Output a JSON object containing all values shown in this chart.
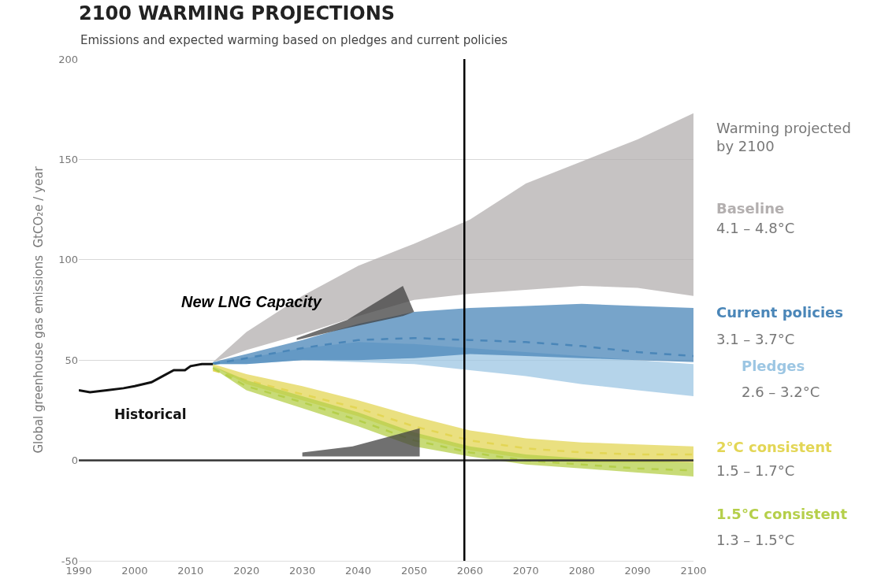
{
  "chart_data": {
    "type": "line",
    "title": "2100 WARMING PROJECTIONS",
    "subtitle": "Emissions and expected warming based on pledges and current policies",
    "ylabel": "Global greenhouse gas emissions  GtCO₂e / year",
    "x": [
      2014,
      2020,
      2030,
      2040,
      2050,
      2060,
      2070,
      2080,
      2090,
      2100
    ],
    "series": [
      {
        "name": "Baseline",
        "color": "#b3afaf",
        "values": [
          null,
          null,
          null,
          null,
          null,
          null,
          null,
          null,
          null,
          null
        ],
        "lower": [
          49,
          55,
          63,
          72,
          80,
          83,
          85,
          87,
          86,
          82
        ],
        "upper": [
          49,
          64,
          82,
          97,
          108,
          120,
          138,
          149,
          160,
          173
        ]
      },
      {
        "name": "Pledges",
        "color": "#9cc6e3",
        "values": [
          null,
          null,
          null,
          null,
          null,
          null,
          null,
          null,
          null,
          null
        ],
        "lower": [
          48,
          48,
          50,
          49,
          48,
          45,
          42,
          38,
          35,
          32
        ],
        "upper": [
          49,
          51,
          56,
          59,
          58,
          56,
          54,
          52,
          50,
          48
        ]
      },
      {
        "name": "Current policies",
        "line_style": "dashed",
        "color": "#4a86b8",
        "values": [
          48,
          51,
          56,
          60,
          61,
          60,
          59,
          57,
          54,
          52
        ],
        "lower": [
          48,
          48,
          50,
          50,
          51,
          53,
          52,
          51,
          50,
          49
        ],
        "upper": [
          49,
          53,
          60,
          68,
          74,
          76,
          77,
          78,
          77,
          76
        ]
      },
      {
        "name": "2°C consistent",
        "line_style": "dashed",
        "color": "#e3d655",
        "values": [
          45,
          40,
          33,
          26,
          17,
          10,
          6,
          4,
          3,
          3
        ],
        "lower": [
          47,
          38,
          30,
          22,
          12,
          5,
          1,
          -1,
          -1,
          -1
        ],
        "upper": [
          48,
          43,
          37,
          30,
          22,
          15,
          11,
          9,
          8,
          7
        ]
      },
      {
        "name": "1.5°C consistent",
        "line_style": "dashed",
        "color": "#b5cf4a",
        "values": [
          46,
          37,
          29,
          20,
          10,
          4,
          0,
          -2,
          -4,
          -5
        ],
        "lower": [
          46,
          35,
          26,
          17,
          7,
          2,
          -2,
          -4,
          -6,
          -8
        ],
        "upper": [
          47,
          40,
          32,
          24,
          14,
          7,
          3,
          1,
          0,
          -1
        ]
      },
      {
        "name": "Historical",
        "color": "#111111",
        "x": [
          1990,
          1992,
          1995,
          1998,
          2000,
          2003,
          2005,
          2007,
          2009,
          2010,
          2012,
          2014
        ],
        "values": [
          35,
          34,
          35,
          36,
          37,
          39,
          42,
          45,
          45,
          47,
          48,
          48
        ]
      },
      {
        "color": "#404040",
        "x": [
          2029,
          2038,
          2048,
          2050
        ],
        "values": [
          null,
          null,
          null,
          null
        ],
        "lower": [
          60,
          66,
          72,
          74
        ],
        "upper": [
          61,
          70,
          87,
          74
        ]
      },
      {
        "color": "#404040",
        "x": [
          2030,
          2039,
          2051
        ],
        "values": [
          null,
          null,
          null
        ],
        "lower": [
          2,
          2,
          2
        ],
        "upper": [
          4,
          7,
          16
        ]
      }
    ],
    "annotations": [
      "Warming projected\nby 2100",
      "4.1 – 4.8°C",
      "2.6 – 3.2°C",
      "3.1 – 3.7°C",
      "1.5 – 1.7°C",
      "1.3 – 1.5°C",
      "New LNG Capacity"
    ],
    "ref_lines": [
      {
        "axis": "y",
        "value": 0,
        "color": "#333333"
      },
      {
        "axis": "x",
        "value": 2059,
        "color": "#000000"
      }
    ],
    "xlim": [
      1990,
      2100
    ],
    "xticks": [
      1990,
      2000,
      2010,
      2020,
      2030,
      2040,
      2050,
      2060,
      2070,
      2080,
      2090,
      2100
    ],
    "ylim": [
      -50,
      200
    ],
    "yticks": [
      -50,
      0,
      50,
      100,
      150,
      200
    ],
    "grid": "y"
  }
}
